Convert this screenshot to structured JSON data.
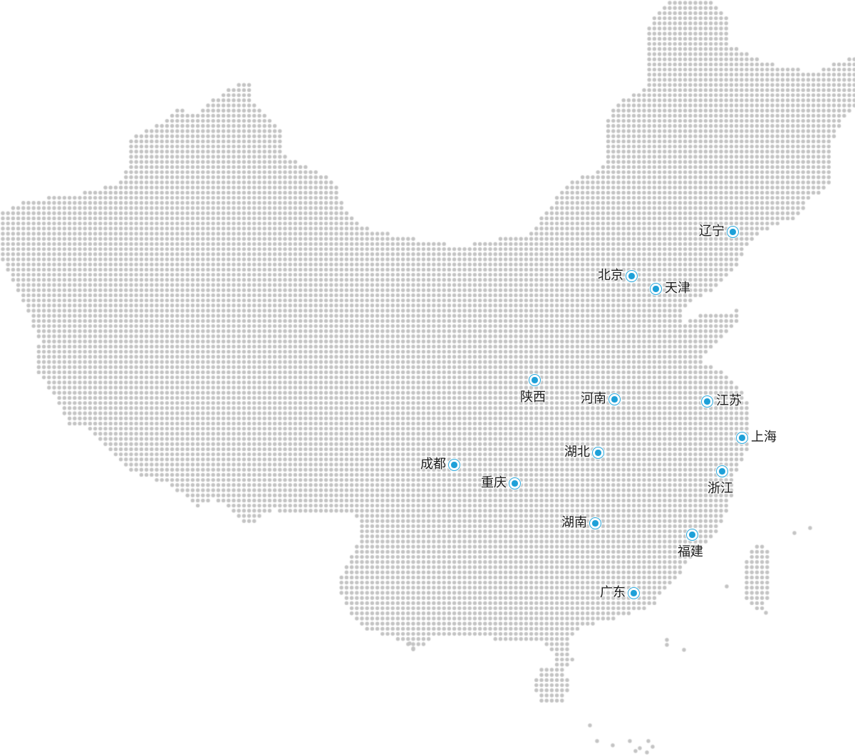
{
  "map": {
    "dot_color": "#c4c4c4",
    "marker_color": "#1ea0d8",
    "markers": [
      {
        "id": "liaoning",
        "label": "辽宁"
      },
      {
        "id": "beijing",
        "label": "北京"
      },
      {
        "id": "tianjin",
        "label": "天津"
      },
      {
        "id": "shaanxi",
        "label": "陕西"
      },
      {
        "id": "henan",
        "label": "河南"
      },
      {
        "id": "jiangsu",
        "label": "江苏"
      },
      {
        "id": "shanghai",
        "label": "上海"
      },
      {
        "id": "hubei",
        "label": "湖北"
      },
      {
        "id": "chengdu",
        "label": "成都"
      },
      {
        "id": "chongqing",
        "label": "重庆"
      },
      {
        "id": "zhejiang",
        "label": "浙江"
      },
      {
        "id": "hunan",
        "label": "湖南"
      },
      {
        "id": "fujian",
        "label": "福建"
      },
      {
        "id": "guangdong",
        "label": "广东"
      }
    ]
  }
}
